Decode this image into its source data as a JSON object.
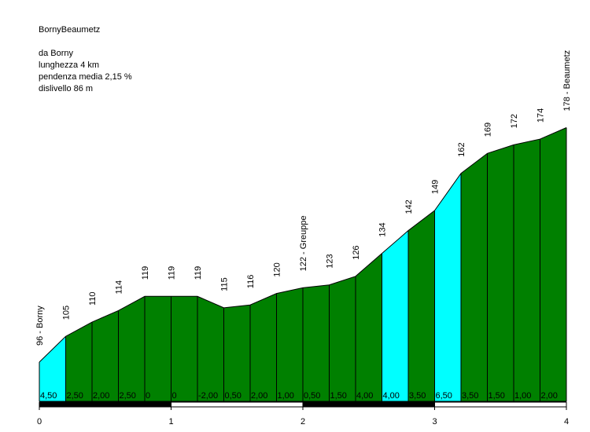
{
  "header": {
    "title": "BornyBeaumetz",
    "lines": [
      "da Borny",
      "lunghezza 4 km",
      "pendenza media 2,15 %",
      "dislivello 86 m"
    ]
  },
  "colors": {
    "normal_fill": "#008000",
    "steep_fill": "#00ffff",
    "outline": "#000000",
    "scale_dark": "#000000",
    "scale_light": "#ffffff"
  },
  "chart_data": {
    "type": "area",
    "title": "BornyBeaumetz",
    "xlabel": "",
    "ylabel": "",
    "xlim": [
      0,
      4
    ],
    "x_ticks": [
      "0",
      "1",
      "2",
      "3",
      "4"
    ],
    "x": [
      0,
      0.2,
      0.4,
      0.6,
      0.8,
      1.0,
      1.2,
      1.4,
      1.6,
      1.8,
      2.0,
      2.2,
      2.4,
      2.6,
      2.8,
      3.0,
      3.2,
      3.4,
      3.6,
      3.8,
      4.0
    ],
    "elevation": [
      96,
      105,
      110,
      114,
      119,
      119,
      119,
      115,
      116,
      120,
      122,
      123,
      126,
      134,
      142,
      149,
      162,
      169,
      172,
      174,
      178
    ],
    "elevation_labels": [
      "96 - Borny",
      "105",
      "110",
      "114",
      "119",
      "119",
      "119",
      "115",
      "116",
      "120",
      "122 - Greuppe",
      "123",
      "126",
      "134",
      "142",
      "149",
      "162",
      "169",
      "172",
      "174",
      "178 - Beaumetz"
    ],
    "gradients": [
      "4,50",
      "2,50",
      "2,00",
      "2,50",
      "0",
      "0",
      "-2,00",
      "0,50",
      "2,00",
      "1,00",
      "0,50",
      "1,50",
      "4,00",
      "4,00",
      "3,50",
      "6,50",
      "3,50",
      "1,50",
      "1,00",
      "2,00"
    ],
    "steep_segments": [
      0,
      13,
      15
    ]
  }
}
